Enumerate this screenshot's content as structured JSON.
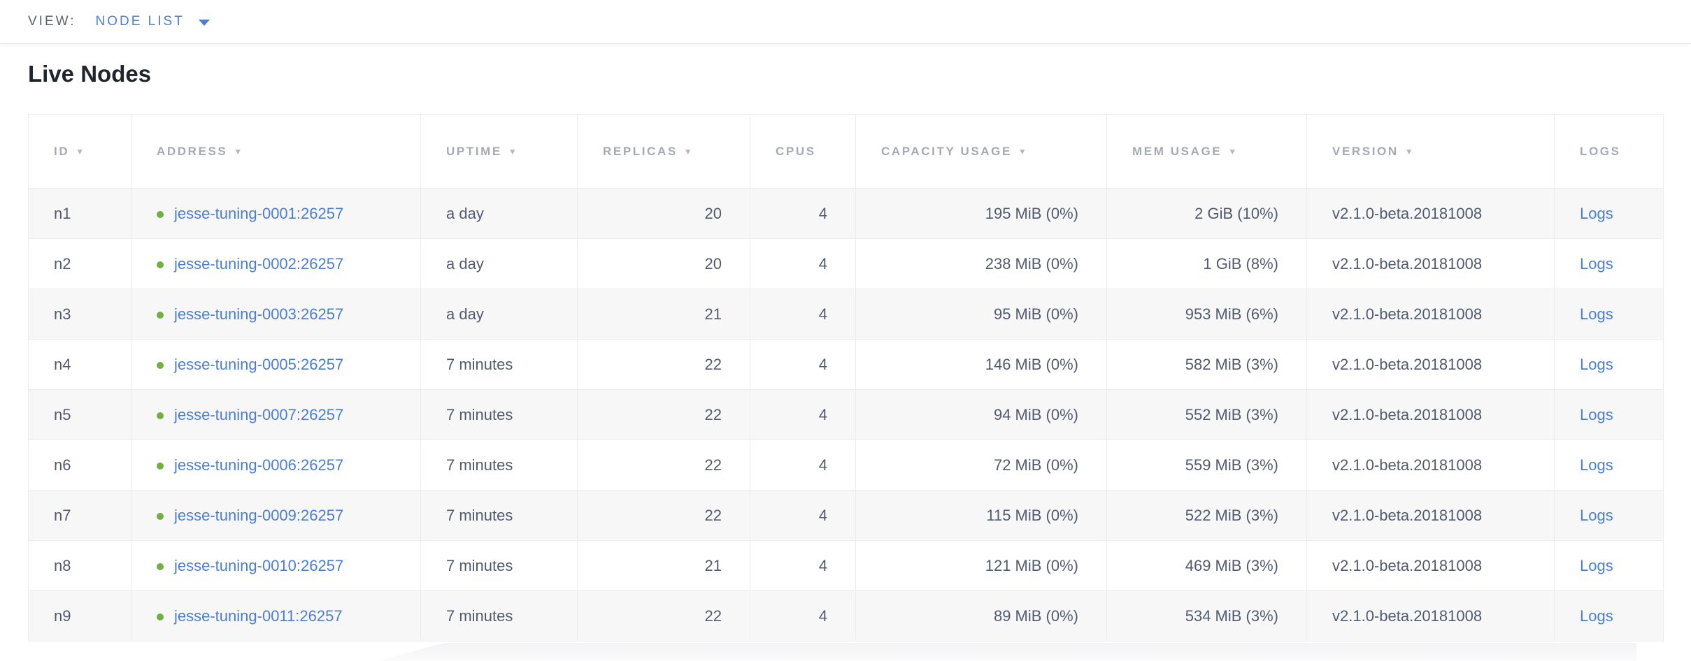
{
  "view_bar": {
    "label": "VIEW:",
    "selected": "NODE LIST",
    "caret_icon": "chevron-down"
  },
  "page": {
    "title": "Live Nodes"
  },
  "table": {
    "columns": [
      {
        "key": "id",
        "label": "ID",
        "sortable": true,
        "align": "left"
      },
      {
        "key": "address",
        "label": "ADDRESS",
        "sortable": true,
        "align": "left"
      },
      {
        "key": "uptime",
        "label": "UPTIME",
        "sortable": true,
        "align": "left"
      },
      {
        "key": "replicas",
        "label": "REPLICAS",
        "sortable": true,
        "align": "right"
      },
      {
        "key": "cpus",
        "label": "CPUS",
        "sortable": false,
        "align": "right"
      },
      {
        "key": "capacity",
        "label": "CAPACITY USAGE",
        "sortable": true,
        "align": "right"
      },
      {
        "key": "mem",
        "label": "MEM USAGE",
        "sortable": true,
        "align": "right"
      },
      {
        "key": "version",
        "label": "VERSION",
        "sortable": true,
        "align": "left"
      },
      {
        "key": "logs",
        "label": "LOGS",
        "sortable": false,
        "align": "left"
      }
    ],
    "sort_arrow_glyph": "▼",
    "rows": [
      {
        "id": "n1",
        "status": "healthy",
        "address": "jesse-tuning-0001:26257",
        "uptime": "a day",
        "replicas": "20",
        "cpus": "4",
        "capacity": "195 MiB (0%)",
        "mem": "2 GiB (10%)",
        "version": "v2.1.0-beta.20181008",
        "logs": "Logs"
      },
      {
        "id": "n2",
        "status": "healthy",
        "address": "jesse-tuning-0002:26257",
        "uptime": "a day",
        "replicas": "20",
        "cpus": "4",
        "capacity": "238 MiB (0%)",
        "mem": "1 GiB (8%)",
        "version": "v2.1.0-beta.20181008",
        "logs": "Logs"
      },
      {
        "id": "n3",
        "status": "healthy",
        "address": "jesse-tuning-0003:26257",
        "uptime": "a day",
        "replicas": "21",
        "cpus": "4",
        "capacity": "95 MiB (0%)",
        "mem": "953 MiB (6%)",
        "version": "v2.1.0-beta.20181008",
        "logs": "Logs"
      },
      {
        "id": "n4",
        "status": "healthy",
        "address": "jesse-tuning-0005:26257",
        "uptime": "7 minutes",
        "replicas": "22",
        "cpus": "4",
        "capacity": "146 MiB (0%)",
        "mem": "582 MiB (3%)",
        "version": "v2.1.0-beta.20181008",
        "logs": "Logs"
      },
      {
        "id": "n5",
        "status": "healthy",
        "address": "jesse-tuning-0007:26257",
        "uptime": "7 minutes",
        "replicas": "22",
        "cpus": "4",
        "capacity": "94 MiB (0%)",
        "mem": "552 MiB (3%)",
        "version": "v2.1.0-beta.20181008",
        "logs": "Logs"
      },
      {
        "id": "n6",
        "status": "healthy",
        "address": "jesse-tuning-0006:26257",
        "uptime": "7 minutes",
        "replicas": "22",
        "cpus": "4",
        "capacity": "72 MiB (0%)",
        "mem": "559 MiB (3%)",
        "version": "v2.1.0-beta.20181008",
        "logs": "Logs"
      },
      {
        "id": "n7",
        "status": "healthy",
        "address": "jesse-tuning-0009:26257",
        "uptime": "7 minutes",
        "replicas": "22",
        "cpus": "4",
        "capacity": "115 MiB (0%)",
        "mem": "522 MiB (3%)",
        "version": "v2.1.0-beta.20181008",
        "logs": "Logs"
      },
      {
        "id": "n8",
        "status": "healthy",
        "address": "jesse-tuning-0010:26257",
        "uptime": "7 minutes",
        "replicas": "21",
        "cpus": "4",
        "capacity": "121 MiB (0%)",
        "mem": "469 MiB (3%)",
        "version": "v2.1.0-beta.20181008",
        "logs": "Logs"
      },
      {
        "id": "n9",
        "status": "healthy",
        "address": "jesse-tuning-0011:26257",
        "uptime": "7 minutes",
        "replicas": "22",
        "cpus": "4",
        "capacity": "89 MiB (0%)",
        "mem": "534 MiB (3%)",
        "version": "v2.1.0-beta.20181008",
        "logs": "Logs"
      }
    ]
  },
  "colors": {
    "link_blue": "#4b7ed2",
    "healthy_green": "#70af42",
    "header_text_gray": "#a5aab2",
    "cell_text": "#525a6e",
    "alt_row_bg": "#f7f7f8",
    "border": "#ededef"
  }
}
